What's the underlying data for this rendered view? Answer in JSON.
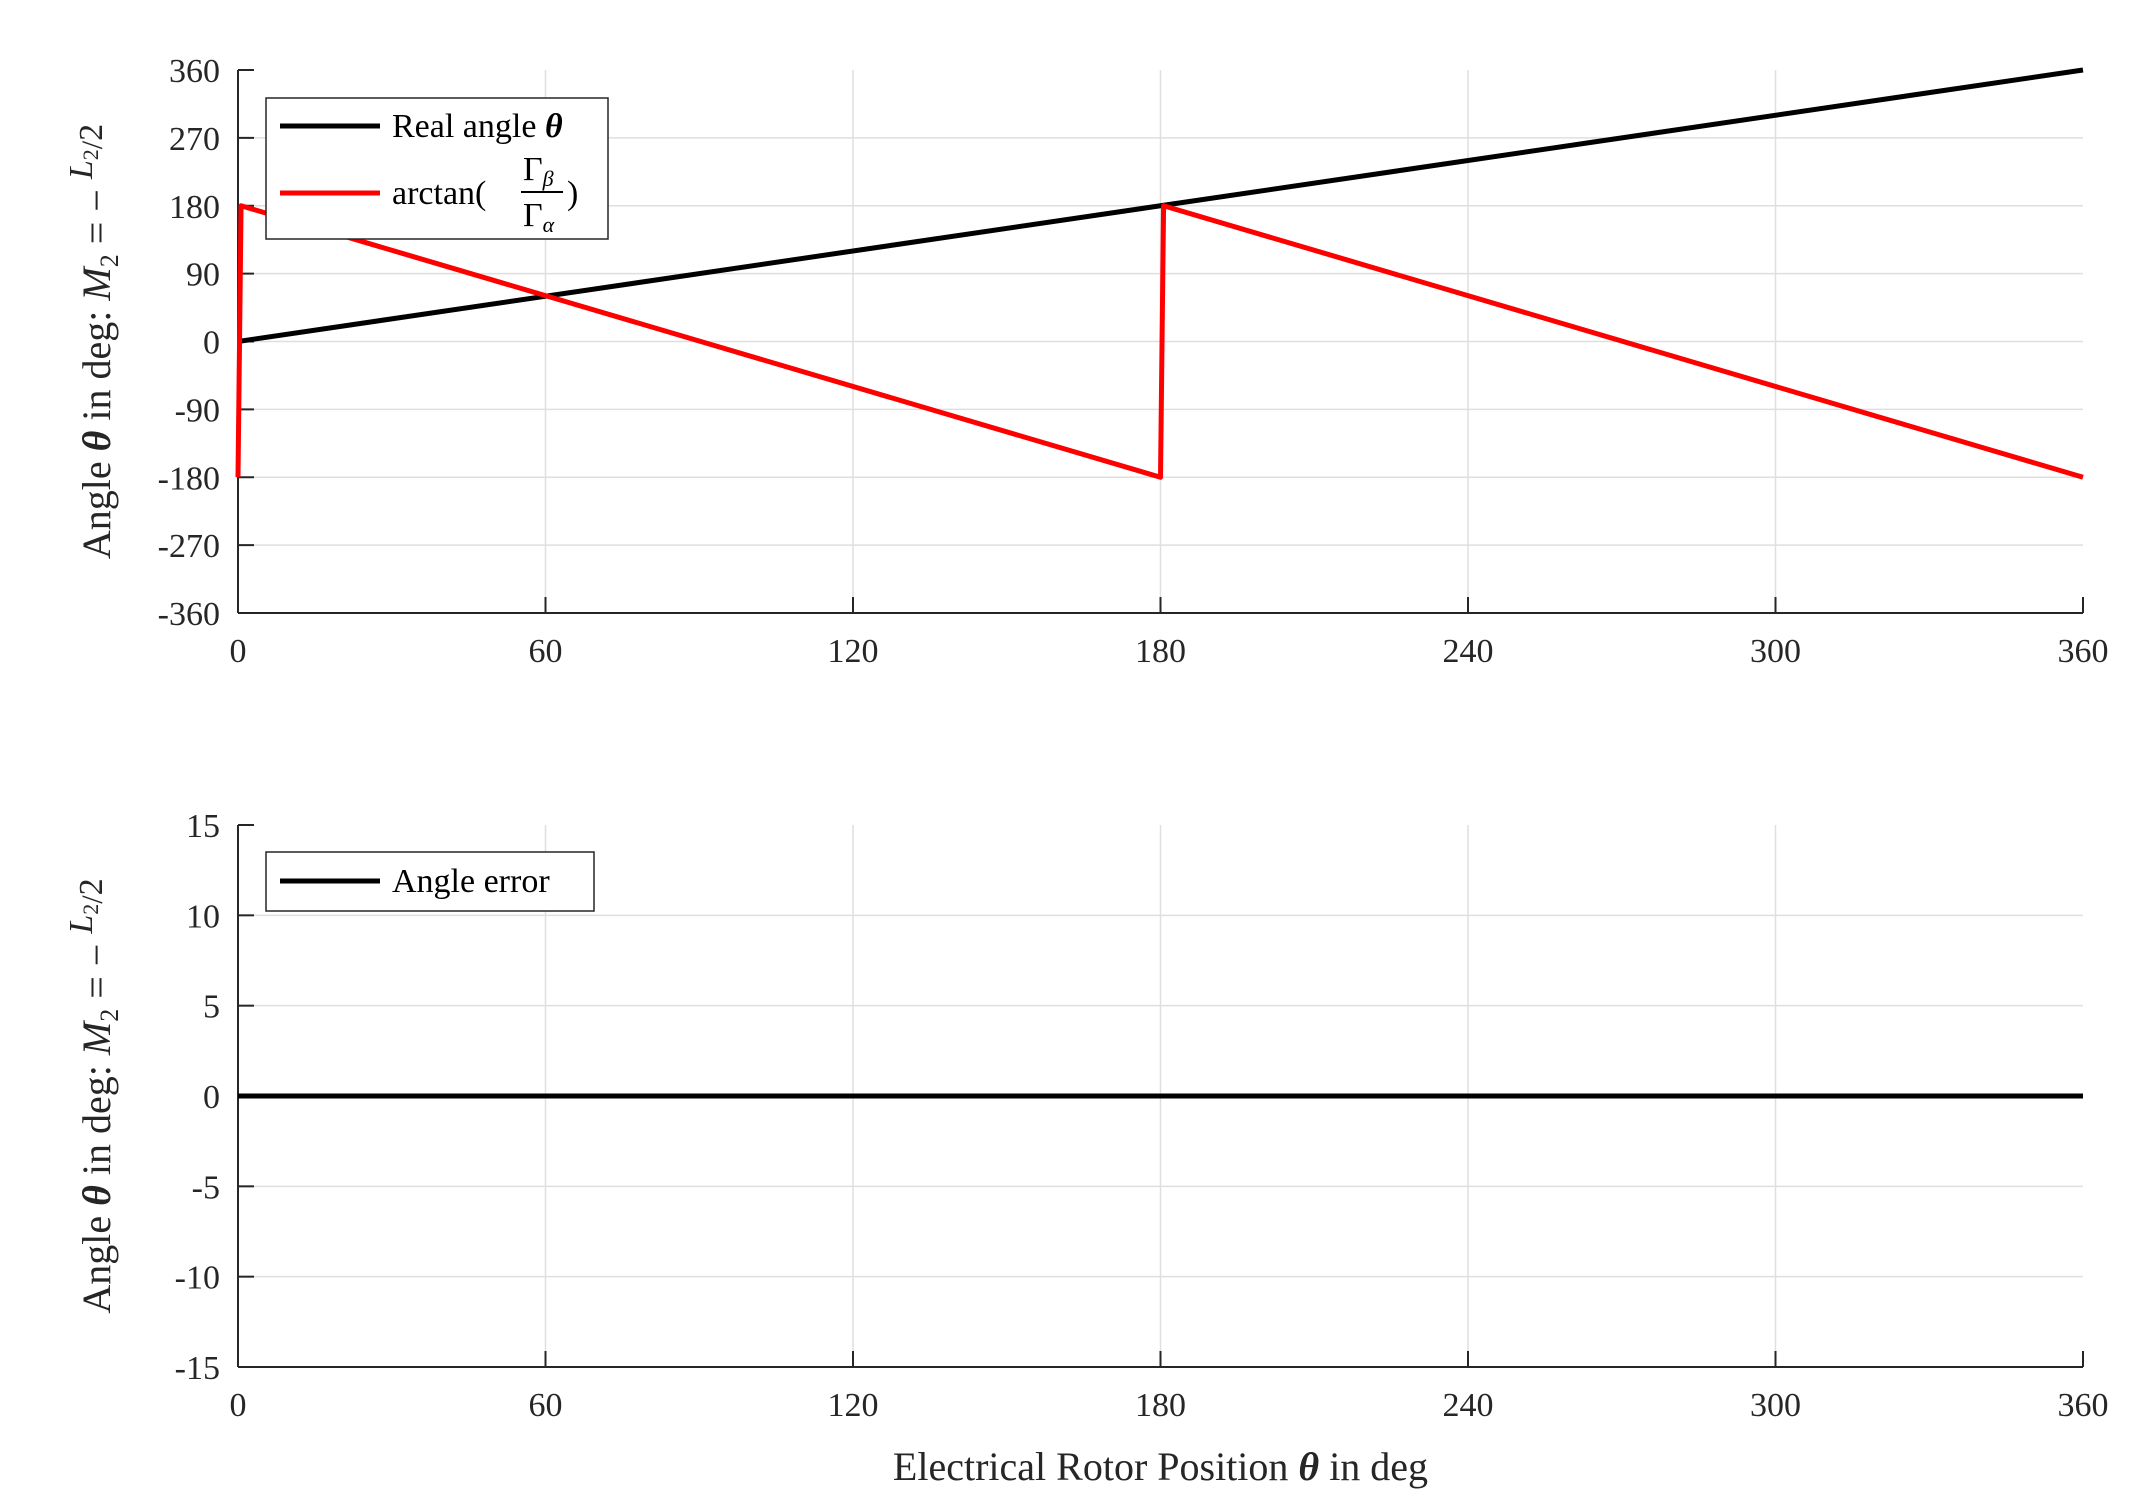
{
  "chart_data": [
    {
      "type": "line",
      "ylabel_text": "Angle θ in deg:",
      "ylabel_math": {
        "lhs": "M",
        "lhs_sub": "2",
        "eq": "= −",
        "num": "L",
        "num_sub": "2",
        "den": "2"
      },
      "xlim": [
        0,
        360
      ],
      "ylim": [
        -360,
        360
      ],
      "xticks": [
        "0",
        "60",
        "120",
        "180",
        "240",
        "300",
        "360"
      ],
      "xtick_values": [
        0,
        60,
        120,
        180,
        240,
        300,
        360
      ],
      "yticks": [
        "360",
        "270",
        "180",
        "90",
        "0",
        "-90",
        "-180",
        "-270",
        "-360"
      ],
      "ytick_values": [
        360,
        270,
        180,
        90,
        0,
        -90,
        -180,
        -270,
        -360
      ],
      "grid": true,
      "legend_placement": "top-left",
      "series": [
        {
          "name": "Real angle θ",
          "legend_text": "Real angle ",
          "legend_italic": "θ",
          "color": "#000000",
          "x": [
            0,
            360
          ],
          "y": [
            0,
            360
          ]
        },
        {
          "name": "arctan(Γβ/Γα)",
          "legend_text": "arctan(",
          "legend_num": "Γ",
          "legend_num_sub": "β",
          "legend_den": "Γ",
          "legend_den_sub": "α",
          "legend_close": ")",
          "color": "#ff0000",
          "x": [
            0,
            0.6,
            180,
            180.6,
            360
          ],
          "y": [
            -180,
            180,
            -180,
            180,
            -180
          ]
        }
      ]
    },
    {
      "type": "line",
      "xlabel_pre": "Electrical Rotor Position ",
      "xlabel_italic": "θ",
      "xlabel_post": " in deg",
      "ylabel_text": "Angle θ in deg:",
      "ylabel_math": {
        "lhs": "M",
        "lhs_sub": "2",
        "eq": "= −",
        "num": "L",
        "num_sub": "2",
        "den": "2"
      },
      "xlim": [
        0,
        360
      ],
      "ylim": [
        -15,
        15
      ],
      "xticks": [
        "0",
        "60",
        "120",
        "180",
        "240",
        "300",
        "360"
      ],
      "xtick_values": [
        0,
        60,
        120,
        180,
        240,
        300,
        360
      ],
      "yticks": [
        "15",
        "10",
        "5",
        "0",
        "-5",
        "-10",
        "-15"
      ],
      "ytick_values": [
        15,
        10,
        5,
        0,
        -5,
        -10,
        -15
      ],
      "grid": true,
      "legend_placement": "top-left",
      "series": [
        {
          "name": "Angle error",
          "legend_text": "Angle error",
          "color": "#000000",
          "x": [
            0,
            360
          ],
          "y": [
            0,
            0
          ]
        }
      ]
    }
  ]
}
